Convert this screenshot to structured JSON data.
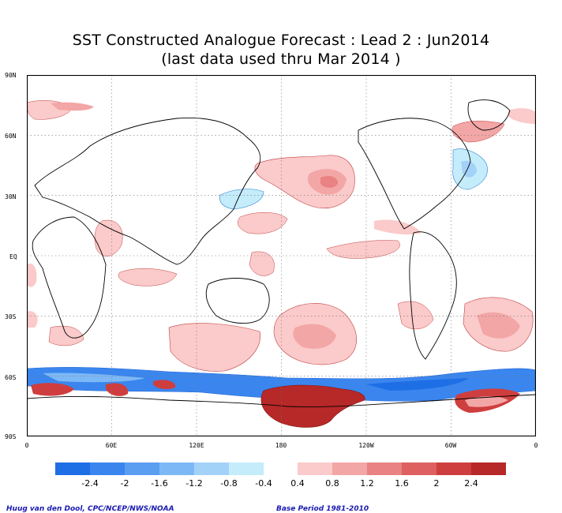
{
  "title": {
    "line1": "SST Constructed Analogue Forecast : Lead 2 : Jun2014",
    "line2": "(last data used thru Mar 2014 )"
  },
  "map": {
    "lat_labels": [
      "90N",
      "60N",
      "30N",
      "EQ",
      "30S",
      "60S",
      "90S"
    ],
    "lon_labels": [
      "0",
      "60E",
      "120E",
      "180",
      "120W",
      "60W",
      "0"
    ],
    "grid": "dotted"
  },
  "colorbar": {
    "labels": [
      "-2.4",
      "-2",
      "-1.6",
      "-1.2",
      "-0.8",
      "-0.4",
      "0.4",
      "0.8",
      "1.2",
      "1.6",
      "2",
      "2.4"
    ],
    "negative_colors": [
      "#1e6fe6",
      "#3a86ee",
      "#5a9ef2",
      "#7db8f6",
      "#a3d2f8",
      "#c4ecfb"
    ],
    "positive_colors": [
      "#fbcaca",
      "#f3a6a6",
      "#e98282",
      "#de6060",
      "#cf3e3e",
      "#b72828"
    ]
  },
  "footer": {
    "credit": "Huug van den Dool, CPC/NCEP/NWS/NOAA",
    "base_period": "Base Period 1981-2010"
  }
}
